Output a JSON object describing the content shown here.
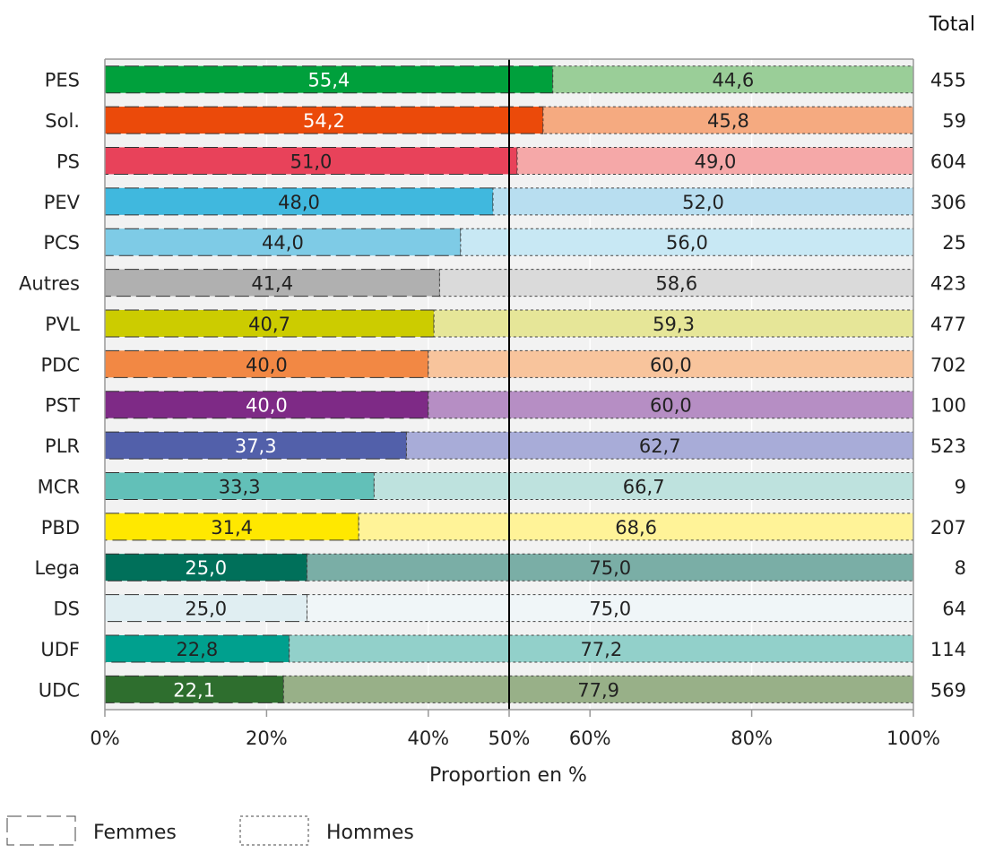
{
  "chart_data": {
    "type": "bar",
    "orientation": "horizontal",
    "stacked": "percent",
    "categories": [
      "PES",
      "Sol.",
      "PS",
      "PEV",
      "PCS",
      "Autres",
      "PVL",
      "PDC",
      "PST",
      "PLR",
      "MCR",
      "PBD",
      "Lega",
      "DS",
      "UDF",
      "UDC"
    ],
    "series": [
      {
        "name": "Femmes",
        "values": [
          55.4,
          54.2,
          51.0,
          48.0,
          44.0,
          41.4,
          40.7,
          40.0,
          40.0,
          37.3,
          33.3,
          31.4,
          25.0,
          25.0,
          22.8,
          22.1
        ],
        "labels": [
          "55,4",
          "54,2",
          "51,0",
          "48,0",
          "44,0",
          "41,4",
          "40,7",
          "40,0",
          "40,0",
          "37,3",
          "33,3",
          "31,4",
          "25,0",
          "25,0",
          "22,8",
          "22,1"
        ],
        "colors": [
          "#00A03C",
          "#EB4A0A",
          "#E8425A",
          "#40B8DE",
          "#7ECBE6",
          "#B0B0B0",
          "#CCCC00",
          "#F28844",
          "#7E2A86",
          "#5260AA",
          "#62C0B8",
          "#FFE800",
          "#00705A",
          "#E0EEF2",
          "#00A08E",
          "#2E6E2E"
        ],
        "label_colors": [
          "#ffffff",
          "#ffffff",
          "#222222",
          "#222222",
          "#222222",
          "#222222",
          "#222222",
          "#222222",
          "#ffffff",
          "#ffffff",
          "#222222",
          "#222222",
          "#ffffff",
          "#222222",
          "#222222",
          "#ffffff"
        ]
      },
      {
        "name": "Hommes",
        "values": [
          44.6,
          45.8,
          49.0,
          52.0,
          56.0,
          58.6,
          59.3,
          60.0,
          60.0,
          62.7,
          66.7,
          68.6,
          75.0,
          75.0,
          77.2,
          77.9
        ],
        "labels": [
          "44,6",
          "45,8",
          "49,0",
          "52,0",
          "56,0",
          "58,6",
          "59,3",
          "60,0",
          "60,0",
          "62,7",
          "66,7",
          "68,6",
          "75,0",
          "75,0",
          "77,2",
          "77,9"
        ],
        "colors": [
          "#9ACE98",
          "#F5AA80",
          "#F5A8A8",
          "#B8DEF0",
          "#C8E8F4",
          "#DADADA",
          "#E6E698",
          "#F8C49C",
          "#B68EC4",
          "#A8ACD8",
          "#BEE2DE",
          "#FFF398",
          "#7AAEA6",
          "#F0F6F8",
          "#92D0CA",
          "#98B088"
        ],
        "label_colors": [
          "#222222",
          "#222222",
          "#222222",
          "#222222",
          "#222222",
          "#222222",
          "#222222",
          "#222222",
          "#222222",
          "#222222",
          "#222222",
          "#222222",
          "#222222",
          "#222222",
          "#222222",
          "#222222"
        ]
      }
    ],
    "totals": [
      "455",
      "59",
      "604",
      "306",
      "25",
      "423",
      "477",
      "702",
      "100",
      "523",
      "9",
      "207",
      "8",
      "64",
      "114",
      "569"
    ],
    "totals_header": "Total",
    "xlabel": "Proportion en %",
    "ylabel": "",
    "xlim": [
      0,
      100
    ],
    "xticks": [
      0,
      20,
      40,
      50,
      60,
      80,
      100
    ],
    "xtick_labels": [
      "0%",
      "20%",
      "40%",
      "50%",
      "60%",
      "80%",
      "100%"
    ],
    "reference_line": 50,
    "grid": true,
    "legend_position": "bottom-left",
    "legend": [
      {
        "label": "Femmes",
        "style": "dashed"
      },
      {
        "label": "Hommes",
        "style": "dotted"
      }
    ]
  }
}
